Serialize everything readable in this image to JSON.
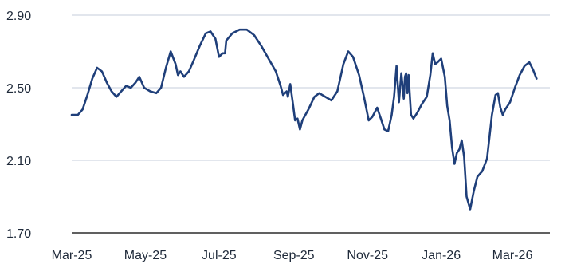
{
  "chart_data": {
    "type": "line",
    "title": "",
    "xlabel": "",
    "ylabel": "",
    "ylim": [
      1.7,
      2.9
    ],
    "yticks": [
      "1.70",
      "2.10",
      "2.50",
      "2.90"
    ],
    "xticks": [
      "Mar-25",
      "May-25",
      "Jul-25",
      "Sep-25",
      "Nov-25",
      "Jan-26",
      "Mar-26"
    ],
    "xrange": [
      "2025-03-01",
      "2026-04-01"
    ],
    "grid": true,
    "colors": {
      "series": "#1f3f7a",
      "grid": "#d9dee7",
      "axis": "#2b2b2b",
      "text": "#1f2a3a"
    },
    "series": [
      {
        "points": [
          [
            "2025-03-01",
            2.35
          ],
          [
            "2025-03-06",
            2.35
          ],
          [
            "2025-03-10",
            2.38
          ],
          [
            "2025-03-14",
            2.46
          ],
          [
            "2025-03-18",
            2.55
          ],
          [
            "2025-03-22",
            2.61
          ],
          [
            "2025-03-26",
            2.59
          ],
          [
            "2025-03-30",
            2.53
          ],
          [
            "2025-04-03",
            2.48
          ],
          [
            "2025-04-07",
            2.45
          ],
          [
            "2025-04-11",
            2.48
          ],
          [
            "2025-04-15",
            2.51
          ],
          [
            "2025-04-19",
            2.5
          ],
          [
            "2025-04-23",
            2.53
          ],
          [
            "2025-04-26",
            2.56
          ],
          [
            "2025-04-30",
            2.5
          ],
          [
            "2025-05-05",
            2.48
          ],
          [
            "2025-05-10",
            2.47
          ],
          [
            "2025-05-14",
            2.5
          ],
          [
            "2025-05-18",
            2.61
          ],
          [
            "2025-05-22",
            2.7
          ],
          [
            "2025-05-26",
            2.63
          ],
          [
            "2025-05-28",
            2.57
          ],
          [
            "2025-05-30",
            2.59
          ],
          [
            "2025-06-02",
            2.56
          ],
          [
            "2025-06-06",
            2.59
          ],
          [
            "2025-06-10",
            2.65
          ],
          [
            "2025-06-15",
            2.73
          ],
          [
            "2025-06-20",
            2.8
          ],
          [
            "2025-06-24",
            2.81
          ],
          [
            "2025-06-28",
            2.77
          ],
          [
            "2025-07-01",
            2.67
          ],
          [
            "2025-07-04",
            2.69
          ],
          [
            "2025-07-06",
            2.69
          ],
          [
            "2025-07-07",
            2.76
          ],
          [
            "2025-07-12",
            2.8
          ],
          [
            "2025-07-18",
            2.82
          ],
          [
            "2025-07-24",
            2.82
          ],
          [
            "2025-07-30",
            2.79
          ],
          [
            "2025-08-05",
            2.73
          ],
          [
            "2025-08-11",
            2.66
          ],
          [
            "2025-08-17",
            2.59
          ],
          [
            "2025-08-21",
            2.51
          ],
          [
            "2025-08-23",
            2.46
          ],
          [
            "2025-08-26",
            2.48
          ],
          [
            "2025-08-27",
            2.45
          ],
          [
            "2025-08-29",
            2.52
          ],
          [
            "2025-08-31",
            2.42
          ],
          [
            "2025-09-02",
            2.32
          ],
          [
            "2025-09-04",
            2.33
          ],
          [
            "2025-09-06",
            2.27
          ],
          [
            "2025-09-08",
            2.32
          ],
          [
            "2025-09-13",
            2.38
          ],
          [
            "2025-09-18",
            2.45
          ],
          [
            "2025-09-22",
            2.47
          ],
          [
            "2025-09-27",
            2.45
          ],
          [
            "2025-10-02",
            2.43
          ],
          [
            "2025-10-07",
            2.48
          ],
          [
            "2025-10-12",
            2.63
          ],
          [
            "2025-10-16",
            2.7
          ],
          [
            "2025-10-20",
            2.67
          ],
          [
            "2025-10-25",
            2.57
          ],
          [
            "2025-10-29",
            2.45
          ],
          [
            "2025-11-02",
            2.32
          ],
          [
            "2025-11-05",
            2.34
          ],
          [
            "2025-11-09",
            2.39
          ],
          [
            "2025-11-12",
            2.33
          ],
          [
            "2025-11-15",
            2.27
          ],
          [
            "2025-11-18",
            2.26
          ],
          [
            "2025-11-21",
            2.35
          ],
          [
            "2025-11-23",
            2.45
          ],
          [
            "2025-11-25",
            2.62
          ],
          [
            "2025-11-27",
            2.42
          ],
          [
            "2025-11-29",
            2.58
          ],
          [
            "2025-12-01",
            2.44
          ],
          [
            "2025-12-02",
            2.56
          ],
          [
            "2025-12-03",
            2.58
          ],
          [
            "2025-12-04",
            2.47
          ],
          [
            "2025-12-05",
            2.57
          ],
          [
            "2025-12-07",
            2.35
          ],
          [
            "2025-12-09",
            2.33
          ],
          [
            "2025-12-12",
            2.36
          ],
          [
            "2025-12-16",
            2.41
          ],
          [
            "2025-12-20",
            2.45
          ],
          [
            "2025-12-23",
            2.57
          ],
          [
            "2025-12-25",
            2.69
          ],
          [
            "2025-12-27",
            2.63
          ],
          [
            "2025-12-29",
            2.64
          ],
          [
            "2026-01-01",
            2.66
          ],
          [
            "2026-01-04",
            2.56
          ],
          [
            "2026-01-06",
            2.4
          ],
          [
            "2026-01-08",
            2.32
          ],
          [
            "2026-01-10",
            2.17
          ],
          [
            "2026-01-12",
            2.08
          ],
          [
            "2026-01-14",
            2.14
          ],
          [
            "2026-01-16",
            2.16
          ],
          [
            "2026-01-18",
            2.21
          ],
          [
            "2026-01-20",
            2.12
          ],
          [
            "2026-01-22",
            1.9
          ],
          [
            "2026-01-25",
            1.83
          ],
          [
            "2026-01-28",
            1.93
          ],
          [
            "2026-01-31",
            2.01
          ],
          [
            "2026-02-04",
            2.04
          ],
          [
            "2026-02-08",
            2.11
          ],
          [
            "2026-02-12",
            2.35
          ],
          [
            "2026-02-15",
            2.46
          ],
          [
            "2026-02-17",
            2.47
          ],
          [
            "2026-02-19",
            2.39
          ],
          [
            "2026-02-21",
            2.35
          ],
          [
            "2026-02-23",
            2.38
          ],
          [
            "2026-02-27",
            2.42
          ],
          [
            "2026-03-03",
            2.5
          ],
          [
            "2026-03-07",
            2.57
          ],
          [
            "2026-03-11",
            2.62
          ],
          [
            "2026-03-15",
            2.64
          ],
          [
            "2026-03-18",
            2.6
          ],
          [
            "2026-03-21",
            2.55
          ]
        ]
      }
    ]
  }
}
